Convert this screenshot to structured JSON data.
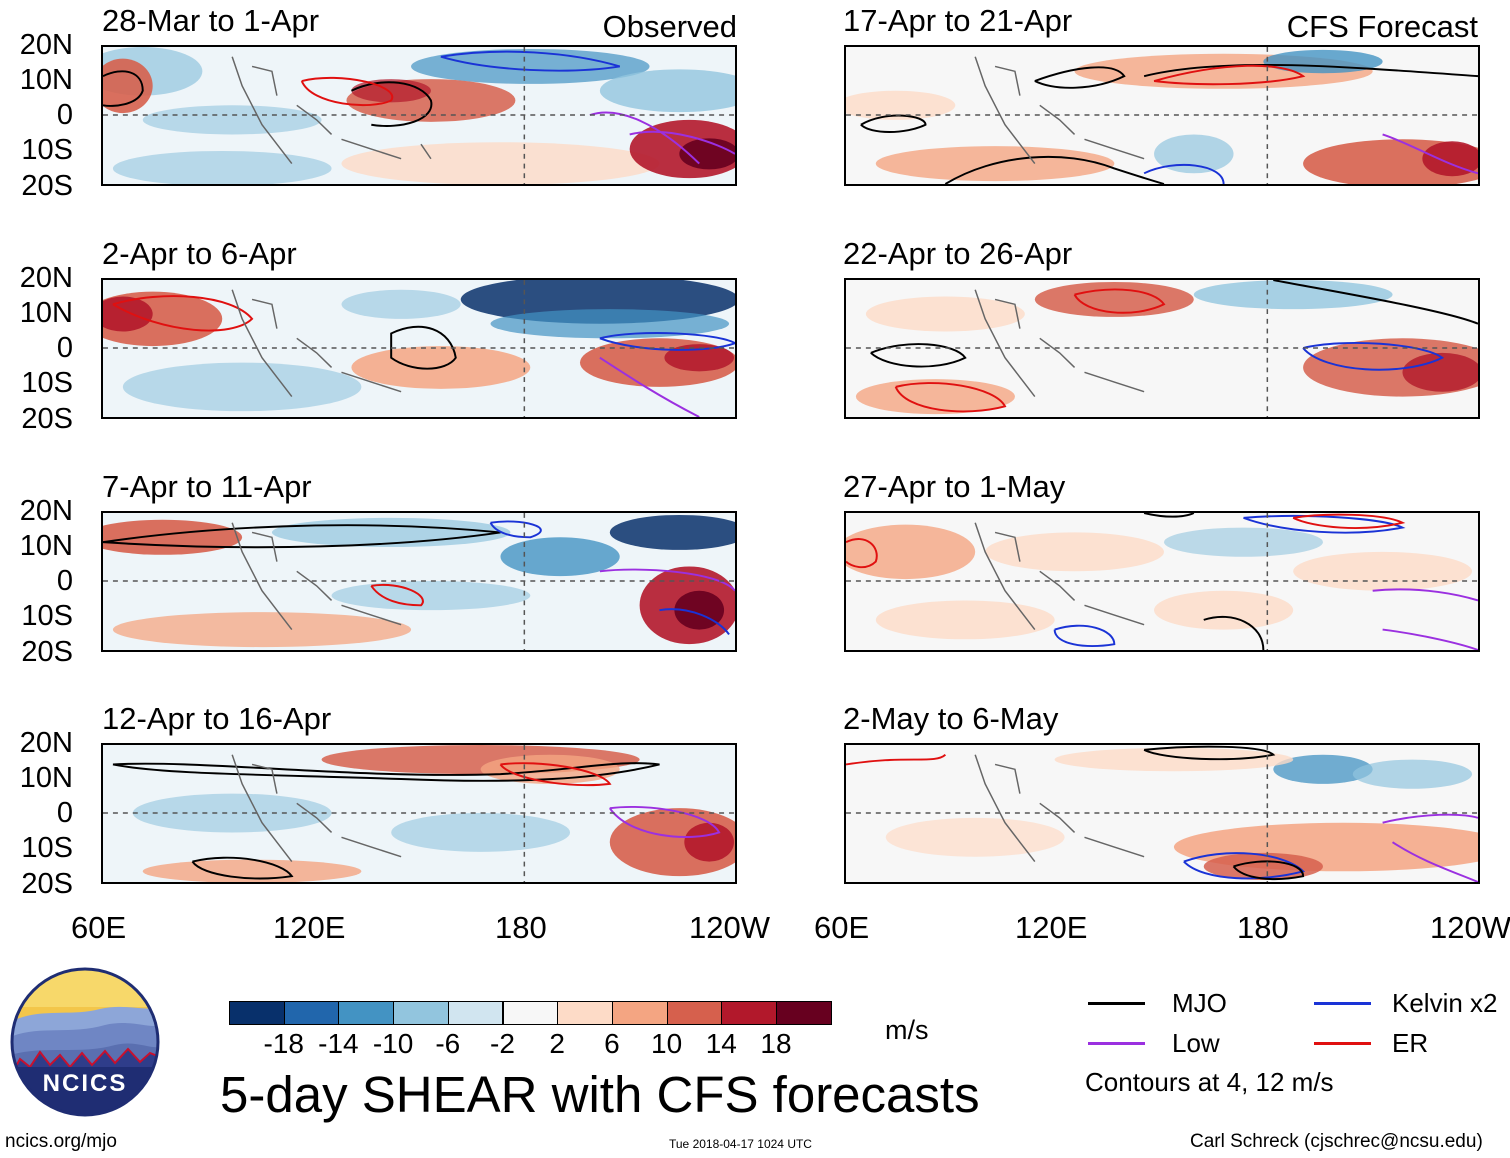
{
  "panels_left": [
    {
      "title": "28-Mar to 1-Apr",
      "tag": "Observed"
    },
    {
      "title": "2-Apr to 6-Apr",
      "tag": ""
    },
    {
      "title": "7-Apr to 11-Apr",
      "tag": ""
    },
    {
      "title": "12-Apr to 16-Apr",
      "tag": ""
    }
  ],
  "panels_right": [
    {
      "title": "17-Apr to 21-Apr",
      "tag": "CFS Forecast"
    },
    {
      "title": "22-Apr to 26-Apr",
      "tag": ""
    },
    {
      "title": "27-Apr to 1-May",
      "tag": ""
    },
    {
      "title": "2-May to 6-May",
      "tag": ""
    }
  ],
  "lat_labels": [
    "20N",
    "10N",
    "0",
    "10S",
    "20S"
  ],
  "lon_labels": [
    "60E",
    "120E",
    "180",
    "120W"
  ],
  "colorbar": {
    "colors": [
      "#08306b",
      "#2166ac",
      "#4393c3",
      "#92c5de",
      "#d1e5f0",
      "#f7f7f7",
      "#fddbc7",
      "#f4a582",
      "#d6604d",
      "#b2182b",
      "#67001f"
    ],
    "labels": [
      "-18",
      "-14",
      "-10",
      "-6",
      "-2",
      "2",
      "6",
      "10",
      "14",
      "18"
    ],
    "units": "m/s"
  },
  "main_title": "5-day SHEAR with CFS forecasts",
  "legend": {
    "items": [
      {
        "label": "MJO",
        "color": "#000000"
      },
      {
        "label": "Kelvin x2",
        "color": "#1a33d6"
      },
      {
        "label": "Low",
        "color": "#9b30e0"
      },
      {
        "label": "ER",
        "color": "#e01010"
      }
    ],
    "note": "Contours at 4, 12 m/s"
  },
  "logo": {
    "text": "NCICS"
  },
  "footer": {
    "left": "ncics.org/mjo",
    "center": "Tue 2018-04-17 1024 UTC",
    "right": "Carl Schreck (cjschrec@ncsu.edu)"
  }
}
